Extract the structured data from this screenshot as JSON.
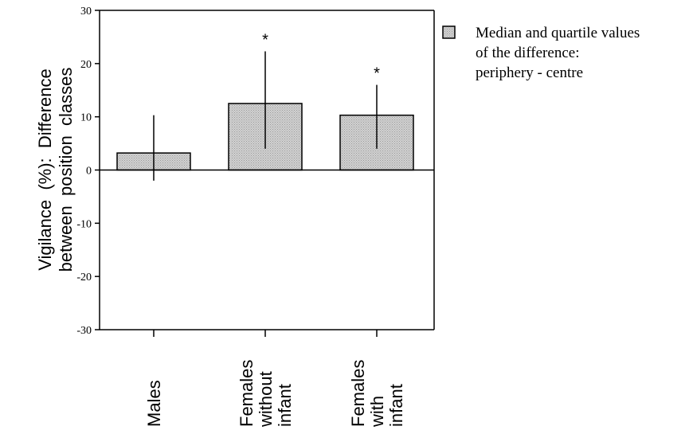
{
  "chart_data": {
    "type": "bar",
    "categories": [
      [
        "Males"
      ],
      [
        "Females",
        "without",
        "infant"
      ],
      [
        "Females",
        "with",
        "infant"
      ]
    ],
    "series": [
      {
        "values": [
          3.2,
          12.5,
          10.3
        ],
        "lower_quartile": [
          -2,
          4,
          4
        ],
        "upper_quartile": [
          10.3,
          22.3,
          16
        ],
        "significance": [
          "",
          "*",
          "*"
        ]
      }
    ],
    "ylabel_lines": [
      "Vigilance  (%):  Difference",
      "between  position  classes"
    ],
    "ylim": [
      -30,
      30
    ],
    "yticks": [
      30,
      20,
      10,
      0,
      -10,
      -20,
      -30
    ],
    "legend": {
      "placement": "top-right",
      "lines": [
        "Median and quartile values",
        "of the difference:",
        "periphery - centre"
      ]
    },
    "grid": false,
    "bar_color": "#c8c8c8"
  }
}
